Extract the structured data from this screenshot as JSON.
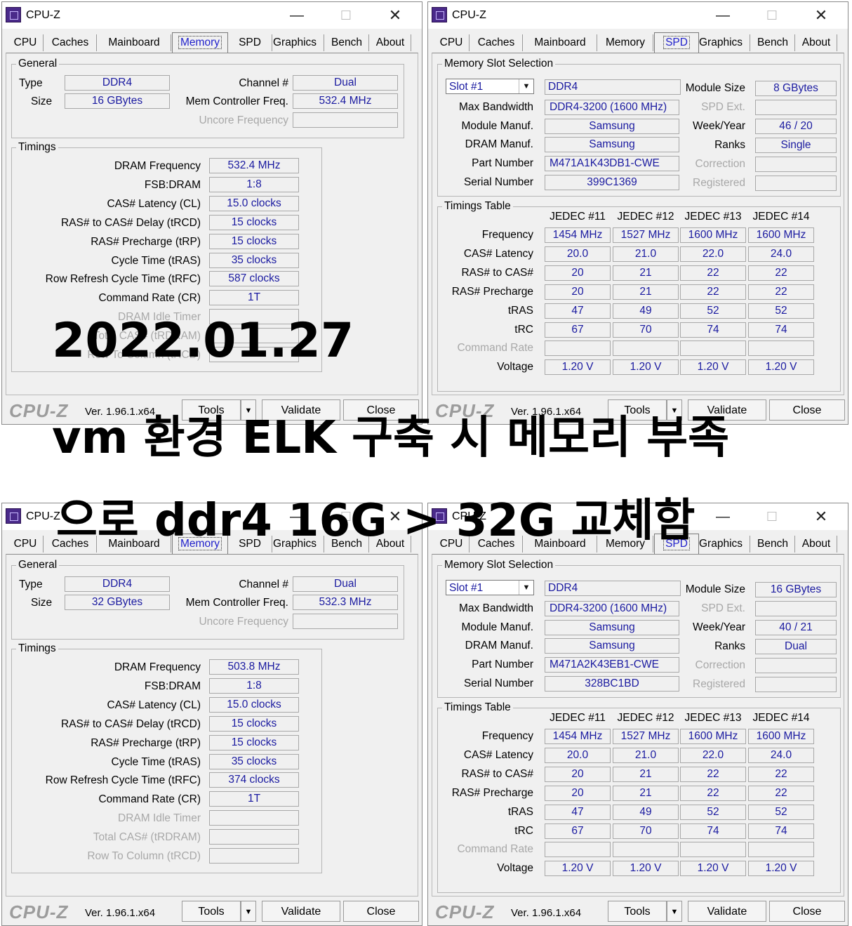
{
  "common": {
    "title": "CPU-Z",
    "tabs": [
      "CPU",
      "Caches",
      "Mainboard",
      "Memory",
      "SPD",
      "Graphics",
      "Bench",
      "About"
    ],
    "logo": "CPU-Z",
    "version": "Ver. 1.96.1.x64",
    "tools_label": "Tools",
    "validate_label": "Validate",
    "close_label": "Close",
    "win_min": "—",
    "win_max": "☐",
    "win_close": "✕",
    "combo_arrow": "▼"
  },
  "memory_labels": {
    "general_title": "General",
    "type": "Type",
    "size": "Size",
    "channel": "Channel #",
    "mem_ctrl": "Mem Controller Freq.",
    "uncore": "Uncore Frequency",
    "timings_title": "Timings",
    "rows": [
      "DRAM Frequency",
      "FSB:DRAM",
      "CAS# Latency (CL)",
      "RAS# to CAS# Delay (tRCD)",
      "RAS# Precharge (tRP)",
      "Cycle Time (tRAS)",
      "Row Refresh Cycle Time (tRFC)",
      "Command Rate (CR)",
      "DRAM Idle Timer",
      "Total CAS# (tRDRAM)",
      "Row To Column (tRCD)"
    ]
  },
  "spd_labels": {
    "slot_title": "Memory Slot Selection",
    "max_bw": "Max Bandwidth",
    "module_manuf": "Module Manuf.",
    "dram_manuf": "DRAM Manuf.",
    "part_number": "Part Number",
    "serial_number": "Serial Number",
    "module_size": "Module Size",
    "spd_ext": "SPD Ext.",
    "week_year": "Week/Year",
    "ranks": "Ranks",
    "correction": "Correction",
    "registered": "Registered",
    "timings_title": "Timings Table",
    "jedec_headers": [
      "JEDEC #11",
      "JEDEC #12",
      "JEDEC #13",
      "JEDEC #14"
    ],
    "rows": [
      "Frequency",
      "CAS# Latency",
      "RAS# to CAS#",
      "RAS# Precharge",
      "tRAS",
      "tRC",
      "Command Rate",
      "Voltage"
    ]
  },
  "before": {
    "memory": {
      "type": "DDR4",
      "size": "16 GBytes",
      "channel": "Dual",
      "mem_ctrl": "532.4 MHz",
      "timings": [
        "532.4 MHz",
        "1:8",
        "15.0 clocks",
        "15 clocks",
        "15 clocks",
        "35 clocks",
        "587 clocks",
        "1T",
        "",
        "",
        ""
      ]
    },
    "spd": {
      "slot": "Slot #1",
      "type": "DDR4",
      "max_bw": "DDR4-3200 (1600 MHz)",
      "module_manuf": "Samsung",
      "dram_manuf": "Samsung",
      "part_number": "M471A1K43DB1-CWE",
      "serial_number": "399C1369",
      "module_size": "8 GBytes",
      "week_year": "46 / 20",
      "ranks": "Single",
      "table": [
        [
          "1454 MHz",
          "1527 MHz",
          "1600 MHz",
          "1600 MHz"
        ],
        [
          "20.0",
          "21.0",
          "22.0",
          "24.0"
        ],
        [
          "20",
          "21",
          "22",
          "22"
        ],
        [
          "20",
          "21",
          "22",
          "22"
        ],
        [
          "47",
          "49",
          "52",
          "52"
        ],
        [
          "67",
          "70",
          "74",
          "74"
        ],
        [
          "",
          "",
          "",
          ""
        ],
        [
          "1.20 V",
          "1.20 V",
          "1.20 V",
          "1.20 V"
        ]
      ]
    }
  },
  "after": {
    "memory": {
      "type": "DDR4",
      "size": "32 GBytes",
      "channel": "Dual",
      "mem_ctrl": "532.3 MHz",
      "timings": [
        "503.8 MHz",
        "1:8",
        "15.0 clocks",
        "15 clocks",
        "15 clocks",
        "35 clocks",
        "374 clocks",
        "1T",
        "",
        "",
        ""
      ]
    },
    "spd": {
      "slot": "Slot #1",
      "type": "DDR4",
      "max_bw": "DDR4-3200 (1600 MHz)",
      "module_manuf": "Samsung",
      "dram_manuf": "Samsung",
      "part_number": "M471A2K43EB1-CWE",
      "serial_number": "328BC1BD",
      "module_size": "16 GBytes",
      "week_year": "40 / 21",
      "ranks": "Dual",
      "table": [
        [
          "1454 MHz",
          "1527 MHz",
          "1600 MHz",
          "1600 MHz"
        ],
        [
          "20.0",
          "21.0",
          "22.0",
          "24.0"
        ],
        [
          "20",
          "21",
          "22",
          "22"
        ],
        [
          "20",
          "21",
          "22",
          "22"
        ],
        [
          "47",
          "49",
          "52",
          "52"
        ],
        [
          "67",
          "70",
          "74",
          "74"
        ],
        [
          "",
          "",
          "",
          ""
        ],
        [
          "1.20 V",
          "1.20 V",
          "1.20 V",
          "1.20 V"
        ]
      ]
    }
  },
  "overlay": {
    "date": "2022.01.27",
    "line1": "vm 환경 ELK 구축 시 메모리 부족",
    "line2": "으로 ddr4 16G > 32G 교체함"
  }
}
